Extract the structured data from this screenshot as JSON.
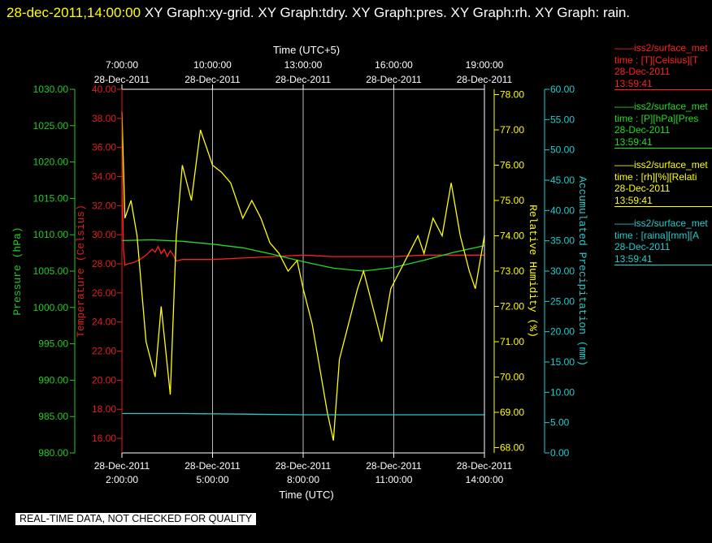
{
  "header": {
    "timestamp": "28-dec-2011,14:00:00",
    "title": "XY Graph:xy-grid.  XY Graph:tdry.  XY Graph:pres.  XY Graph:rh.  XY Graph: rain."
  },
  "footer": {
    "note": "REAL-TIME DATA, NOT CHECKED FOR QUALITY"
  },
  "legend": [
    {
      "name": "——iss2/surface_met",
      "line2": "time : [T][Celsius][T",
      "date": "28-Dec-2011",
      "time": "13:59:41",
      "color": "#ff2020"
    },
    {
      "name": "——iss2/surface_met",
      "line2": "time : [P][hPa][Pres",
      "date": "28-Dec-2011",
      "time": "13:59:41",
      "color": "#22dd22"
    },
    {
      "name": "——iss2/surface_met",
      "line2": "time : [rh][%][Relati",
      "date": "28-Dec-2011",
      "time": "13:59:41",
      "color": "#ffff00"
    },
    {
      "name": "——iss2/surface_met",
      "line2": "time : [raina][mm][A",
      "date": "28-Dec-2011",
      "time": "13:59:41",
      "color": "#22cccc"
    }
  ],
  "chart_data": {
    "type": "line",
    "x_bottom_label": "Time (UTC)",
    "x_top_label": "Time (UTC+5)",
    "x_ticks_bottom": [
      [
        "28-Dec-2011",
        "2:00:00"
      ],
      [
        "28-Dec-2011",
        "5:00:00"
      ],
      [
        "28-Dec-2011",
        "8:00:00"
      ],
      [
        "28-Dec-2011",
        "11:00:00"
      ],
      [
        "28-Dec-2011",
        "14:00:00"
      ]
    ],
    "x_ticks_top": [
      [
        "7:00:00",
        "28-Dec-2011"
      ],
      [
        "10:00:00",
        "28-Dec-2011"
      ],
      [
        "13:00:00",
        "28-Dec-2011"
      ],
      [
        "16:00:00",
        "28-Dec-2011"
      ],
      [
        "19:00:00",
        "28-Dec-2011"
      ]
    ],
    "x_range_utc_hours": [
      2,
      14
    ],
    "grid": true,
    "axes": {
      "pressure": {
        "label": "Pressure (hPa)",
        "range": [
          980,
          1030
        ],
        "ticks": [
          "980.00",
          "985.00",
          "990.00",
          "995.00",
          "1000.00",
          "1005.00",
          "1010.00",
          "1015.00",
          "1020.00",
          "1025.00",
          "1030.00"
        ],
        "color": "#22cc22"
      },
      "temperature": {
        "label": "Temperature (Celsius)",
        "range": [
          15,
          40
        ],
        "ticks": [
          "16.00",
          "18.00",
          "20.00",
          "22.00",
          "24.00",
          "26.00",
          "28.00",
          "30.00",
          "32.00",
          "34.00",
          "36.00",
          "38.00",
          "40.00"
        ],
        "color": "#dd2020"
      },
      "humidity": {
        "label": "Relative Humidity (%)",
        "range": [
          67.85,
          78.15
        ],
        "ticks": [
          "68.00",
          "69.00",
          "70.00",
          "71.00",
          "72.00",
          "73.00",
          "74.00",
          "75.00",
          "76.00",
          "77.00",
          "78.00"
        ],
        "color": "#ffff00"
      },
      "rain": {
        "label": "Accumulated Precipitation (mm)",
        "range": [
          0,
          60
        ],
        "ticks": [
          "0.00",
          "5.00",
          "10.00",
          "15.00",
          "20.00",
          "25.00",
          "30.00",
          "35.00",
          "40.00",
          "45.00",
          "50.00",
          "55.00",
          "60.00"
        ],
        "color": "#22cccc"
      }
    },
    "series": [
      {
        "axis": "temperature",
        "color": "#ff2020",
        "x": [
          2.0,
          2.02,
          2.05,
          2.1,
          2.2,
          2.4,
          2.6,
          2.8,
          3.0,
          3.1,
          3.2,
          3.3,
          3.4,
          3.5,
          3.6,
          3.7,
          3.8,
          4.0,
          4.5,
          5.0,
          6.0,
          7.0,
          8.0,
          9.0,
          10.0,
          11.0,
          12.0,
          13.0,
          14.0
        ],
        "y": [
          38.5,
          33.0,
          29.0,
          27.9,
          28.0,
          28.1,
          28.3,
          28.6,
          29.0,
          28.8,
          29.2,
          28.7,
          29.0,
          28.5,
          28.9,
          28.6,
          28.2,
          28.3,
          28.3,
          28.3,
          28.4,
          28.5,
          28.6,
          28.5,
          28.5,
          28.5,
          28.6,
          28.6,
          28.6
        ]
      },
      {
        "axis": "pressure",
        "color": "#22dd22",
        "x": [
          2.0,
          3.0,
          4.0,
          5.0,
          6.0,
          7.0,
          8.0,
          9.0,
          10.0,
          11.0,
          12.0,
          13.0,
          14.0
        ],
        "y": [
          1009.2,
          1009.3,
          1009.1,
          1008.7,
          1008.2,
          1007.3,
          1006.3,
          1005.4,
          1005.0,
          1005.5,
          1006.5,
          1007.6,
          1008.5
        ]
      },
      {
        "axis": "humidity",
        "color": "#ffff00",
        "x": [
          2.0,
          2.1,
          2.3,
          2.5,
          2.8,
          3.1,
          3.3,
          3.6,
          3.8,
          4.0,
          4.3,
          4.6,
          4.8,
          5.0,
          5.3,
          5.6,
          6.0,
          6.3,
          6.6,
          6.9,
          7.2,
          7.5,
          7.8,
          8.0,
          8.3,
          8.6,
          8.8,
          9.0,
          9.2,
          9.5,
          9.8,
          10.0,
          10.3,
          10.6,
          10.9,
          11.2,
          11.5,
          11.8,
          12.0,
          12.3,
          12.6,
          12.9,
          13.2,
          13.5,
          13.7,
          14.0
        ],
        "y": [
          77.5,
          74.5,
          75.0,
          74.0,
          71.0,
          70.0,
          72.0,
          69.5,
          74.0,
          76.0,
          75.0,
          77.0,
          76.5,
          76.0,
          75.8,
          75.5,
          74.5,
          75.0,
          74.5,
          73.8,
          73.5,
          73.0,
          73.3,
          72.5,
          71.5,
          70.0,
          69.0,
          68.2,
          70.5,
          71.5,
          72.5,
          73.0,
          72.0,
          71.0,
          72.5,
          73.0,
          73.5,
          74.0,
          73.5,
          74.5,
          74.0,
          75.5,
          74.0,
          73.0,
          72.5,
          74.0
        ]
      },
      {
        "axis": "rain",
        "color": "#22cccc",
        "x": [
          2.0,
          4.0,
          6.0,
          8.0,
          10.0,
          12.0,
          14.0
        ],
        "y": [
          6.5,
          6.5,
          6.4,
          6.3,
          6.3,
          6.3,
          6.3
        ]
      }
    ]
  }
}
